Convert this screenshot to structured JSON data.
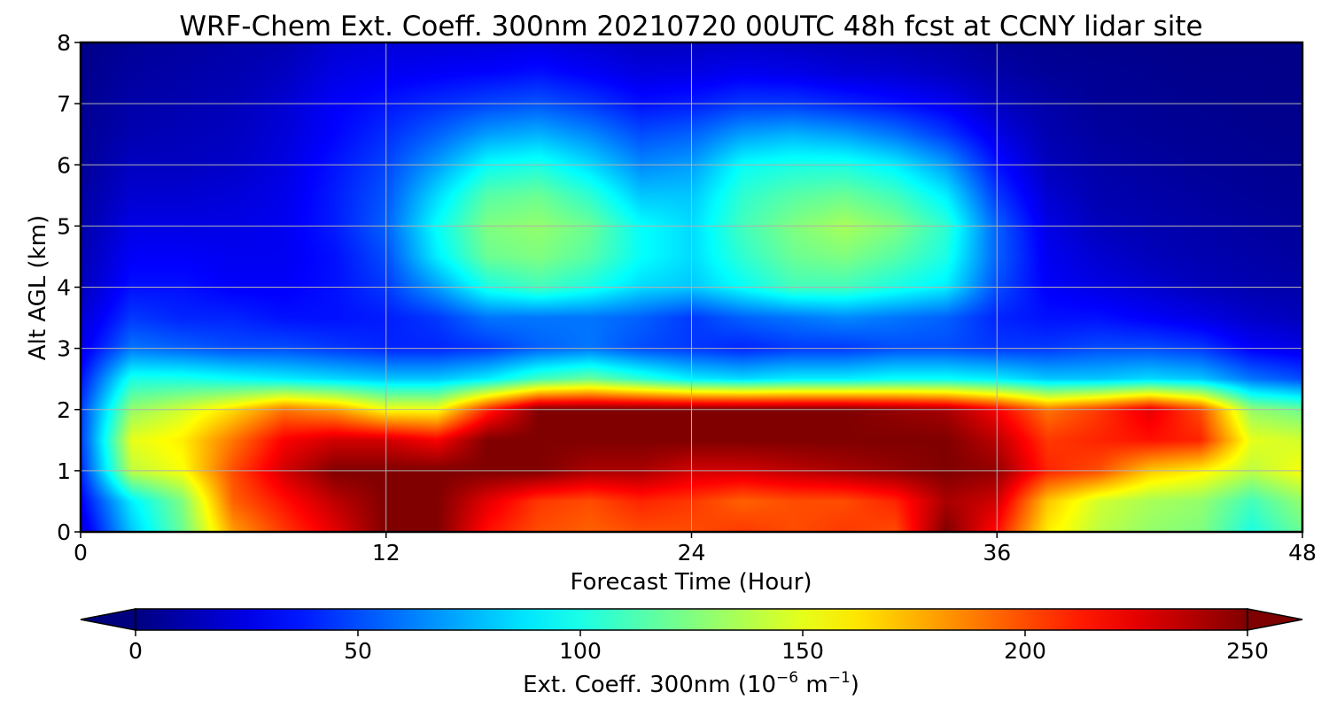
{
  "chart_data": {
    "type": "heatmap",
    "title": "WRF-Chem Ext. Coeff. 300nm  20210720 00UTC 48h fcst at CCNY lidar site",
    "xlabel": "Forecast Time (Hour)",
    "ylabel": "Alt AGL (km)",
    "xlim": [
      0,
      48
    ],
    "ylim": [
      0,
      8
    ],
    "x_ticks": [
      0,
      12,
      24,
      36,
      48
    ],
    "y_ticks": [
      0,
      1,
      2,
      3,
      4,
      5,
      6,
      7,
      8
    ],
    "grid": true,
    "colormap": "jet",
    "colorbar": {
      "label_main": "Ext. Coeff. 300nm  (10",
      "label_exp1": "−6",
      "label_mid": " m",
      "label_exp2": "−1",
      "label_end": ")",
      "range": [
        0,
        250
      ],
      "ticks": [
        0,
        50,
        100,
        150,
        200,
        250
      ],
      "orientation": "horizontal",
      "extend": "both"
    },
    "x": [
      0,
      2,
      4,
      6,
      8,
      10,
      12,
      14,
      16,
      18,
      20,
      22,
      24,
      26,
      28,
      30,
      32,
      34,
      36,
      38,
      40,
      42,
      44,
      46,
      48
    ],
    "y": [
      0,
      0.5,
      1,
      1.5,
      2,
      2.5,
      3,
      3.5,
      4,
      4.5,
      5,
      5.5,
      6,
      6.5,
      7,
      7.5,
      8
    ],
    "z": [
      [
        20,
        80,
        120,
        180,
        205,
        225,
        250,
        250,
        215,
        200,
        195,
        200,
        200,
        205,
        200,
        205,
        200,
        250,
        215,
        160,
        140,
        130,
        125,
        100,
        120
      ],
      [
        30,
        90,
        125,
        195,
        215,
        235,
        250,
        250,
        225,
        205,
        200,
        210,
        205,
        195,
        200,
        200,
        210,
        240,
        230,
        170,
        145,
        135,
        130,
        110,
        130
      ],
      [
        40,
        140,
        155,
        200,
        230,
        250,
        250,
        250,
        250,
        250,
        240,
        240,
        230,
        230,
        235,
        240,
        245,
        250,
        245,
        210,
        200,
        170,
        160,
        140,
        155
      ],
      [
        45,
        150,
        160,
        190,
        220,
        230,
        230,
        220,
        250,
        250,
        250,
        250,
        250,
        250,
        250,
        250,
        250,
        250,
        235,
        205,
        210,
        215,
        210,
        150,
        145
      ],
      [
        45,
        130,
        145,
        165,
        190,
        180,
        155,
        155,
        210,
        250,
        250,
        250,
        250,
        250,
        250,
        250,
        245,
        240,
        220,
        190,
        205,
        225,
        200,
        130,
        120
      ],
      [
        35,
        100,
        100,
        95,
        90,
        85,
        80,
        80,
        90,
        110,
        120,
        105,
        90,
        85,
        90,
        90,
        95,
        95,
        90,
        80,
        80,
        85,
        80,
        60,
        50
      ],
      [
        25,
        60,
        55,
        50,
        50,
        45,
        40,
        40,
        45,
        55,
        60,
        50,
        45,
        40,
        45,
        45,
        50,
        50,
        45,
        45,
        50,
        50,
        45,
        30,
        25
      ],
      [
        20,
        45,
        40,
        40,
        35,
        35,
        38,
        45,
        60,
        60,
        60,
        55,
        45,
        55,
        60,
        65,
        60,
        55,
        40,
        35,
        35,
        30,
        25,
        18,
        15
      ],
      [
        15,
        35,
        35,
        30,
        30,
        35,
        45,
        70,
        100,
        110,
        100,
        85,
        80,
        95,
        110,
        110,
        100,
        90,
        50,
        30,
        25,
        20,
        15,
        12,
        10
      ],
      [
        12,
        30,
        30,
        28,
        28,
        35,
        50,
        90,
        120,
        125,
        115,
        95,
        85,
        105,
        120,
        125,
        115,
        100,
        55,
        28,
        20,
        15,
        12,
        10,
        8
      ],
      [
        10,
        25,
        25,
        25,
        28,
        38,
        55,
        95,
        125,
        130,
        120,
        95,
        85,
        110,
        125,
        135,
        125,
        105,
        55,
        25,
        15,
        12,
        10,
        8,
        6
      ],
      [
        8,
        20,
        20,
        22,
        26,
        38,
        52,
        85,
        115,
        120,
        105,
        80,
        80,
        105,
        115,
        120,
        110,
        90,
        45,
        20,
        12,
        10,
        8,
        6,
        5
      ],
      [
        6,
        16,
        16,
        18,
        24,
        36,
        48,
        70,
        95,
        100,
        85,
        65,
        70,
        95,
        100,
        100,
        90,
        70,
        35,
        15,
        10,
        8,
        6,
        5,
        4
      ],
      [
        5,
        12,
        14,
        16,
        22,
        32,
        42,
        55,
        70,
        75,
        65,
        50,
        55,
        70,
        75,
        70,
        60,
        45,
        25,
        12,
        8,
        6,
        5,
        4,
        3
      ],
      [
        4,
        10,
        12,
        14,
        20,
        30,
        36,
        42,
        48,
        52,
        45,
        35,
        38,
        45,
        45,
        40,
        35,
        28,
        16,
        10,
        6,
        5,
        4,
        3,
        3
      ],
      [
        3,
        8,
        10,
        12,
        16,
        25,
        28,
        30,
        32,
        35,
        30,
        24,
        25,
        28,
        26,
        22,
        20,
        16,
        10,
        6,
        5,
        4,
        3,
        3,
        2
      ],
      [
        2,
        6,
        8,
        10,
        12,
        20,
        22,
        22,
        22,
        24,
        20,
        16,
        16,
        18,
        16,
        14,
        12,
        10,
        6,
        4,
        3,
        3,
        2,
        2,
        2
      ]
    ]
  }
}
